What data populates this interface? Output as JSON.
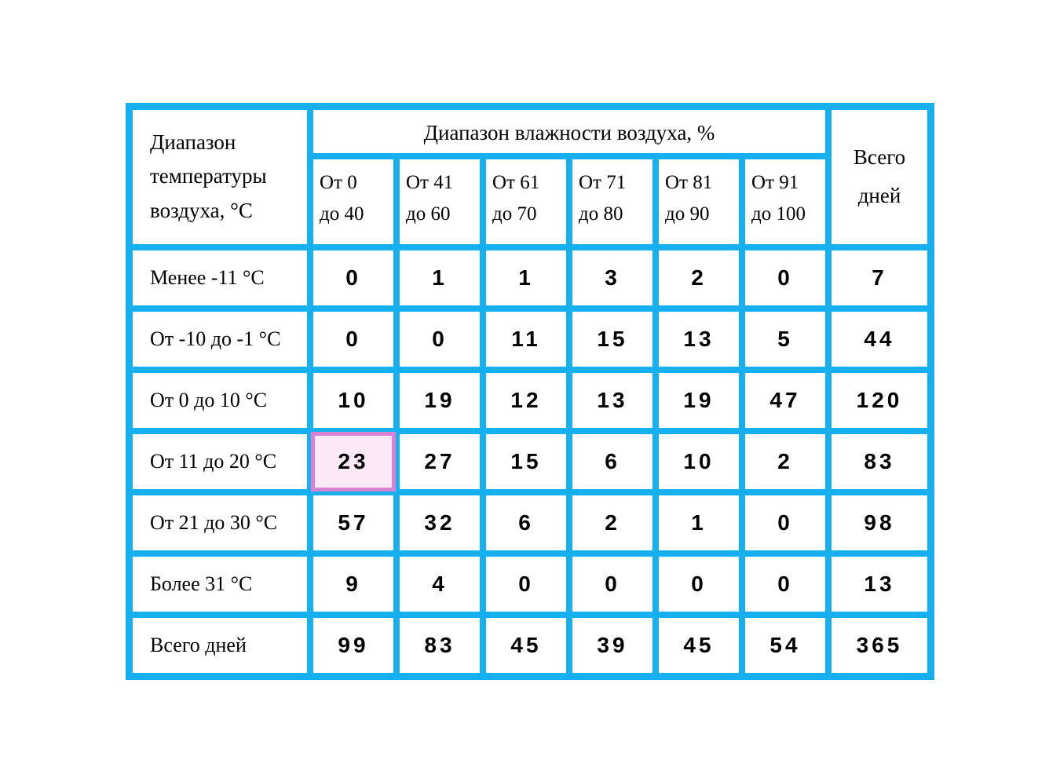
{
  "table": {
    "type": "table",
    "border_color": "#16aff0",
    "highlight_border_color": "#d981d3",
    "highlight_fill_color": "#fce9f8",
    "background_color": "#ffffff",
    "header": {
      "row_header": "Диапазон температуры воздуха, °C",
      "humidity_header": "Диапазон влажности воздуха, %",
      "total_header_line1": "Всего",
      "total_header_line2": "дней",
      "humidity_ranges": [
        {
          "l1": "От 0",
          "l2": "до 40"
        },
        {
          "l1": "От 41",
          "l2": "до 60"
        },
        {
          "l1": "От 61",
          "l2": "до 70"
        },
        {
          "l1": "От 71",
          "l2": "до 80"
        },
        {
          "l1": "От 81",
          "l2": "до 90"
        },
        {
          "l1": "От 91",
          "l2": "до 100"
        }
      ]
    },
    "rows": [
      {
        "label": "Менее -11 °C",
        "values": [
          "0",
          "1",
          "1",
          "3",
          "2",
          "0"
        ],
        "total": "7"
      },
      {
        "label": "От -10 до -1 °C",
        "values": [
          "0",
          "0",
          "11",
          "15",
          "13",
          "5"
        ],
        "total": "44"
      },
      {
        "label": "От 0 до 10 °C",
        "values": [
          "10",
          "19",
          "12",
          "13",
          "19",
          "47"
        ],
        "total": "120"
      },
      {
        "label": "От 11 до 20 °C",
        "values": [
          "23",
          "27",
          "15",
          "6",
          "10",
          "2"
        ],
        "total": "83",
        "highlight_col": 0
      },
      {
        "label": "От 21 до 30 °C",
        "values": [
          "57",
          "32",
          "6",
          "2",
          "1",
          "0"
        ],
        "total": "98"
      },
      {
        "label": "Более 31 °C",
        "values": [
          "9",
          "4",
          "0",
          "0",
          "0",
          "0"
        ],
        "total": "13"
      },
      {
        "label": "Всего дней",
        "values": [
          "99",
          "83",
          "45",
          "39",
          "45",
          "54"
        ],
        "total": "365"
      }
    ]
  }
}
